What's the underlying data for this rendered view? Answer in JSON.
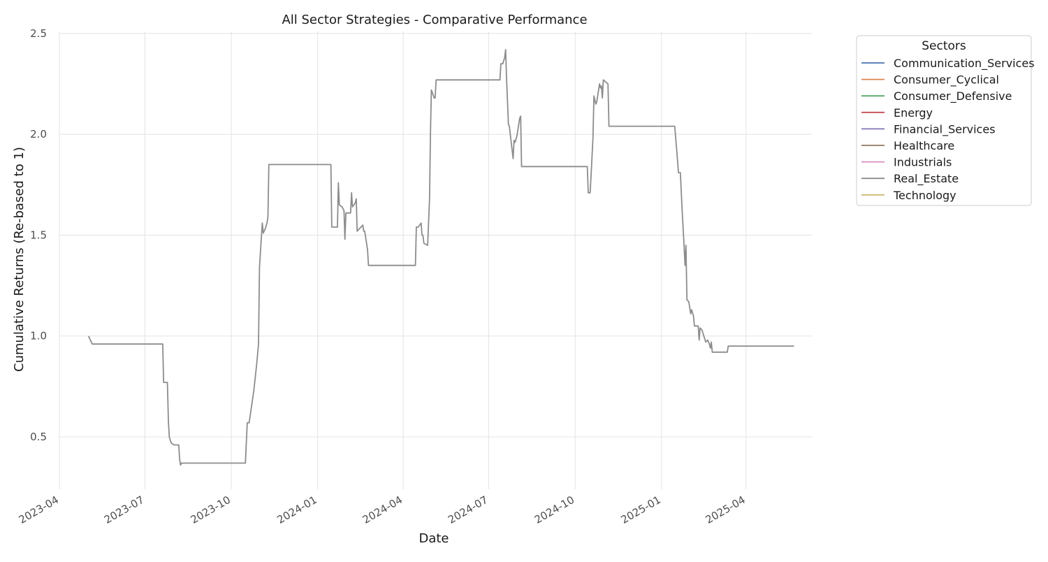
{
  "chart_data": {
    "type": "line",
    "title": "All Sector Strategies - Comparative Performance",
    "xlabel": "Date",
    "ylabel": "Cumulative Returns (Re-based to 1)",
    "xlim": [
      "2023-04-01",
      "2025-06-10"
    ],
    "ylim": [
      0.24,
      2.51
    ],
    "x_ticks": [
      "2023-04",
      "2023-07",
      "2023-10",
      "2024-01",
      "2024-04",
      "2024-07",
      "2024-10",
      "2025-01",
      "2025-04"
    ],
    "y_ticks": [
      0.5,
      1.0,
      1.5,
      2.0,
      2.5
    ],
    "y_tick_labels": [
      "0.5",
      "1.0",
      "1.5",
      "2.0",
      "2.5"
    ],
    "grid": true,
    "legend": {
      "title": "Sectors",
      "placement": "outside-upper-right",
      "entries": [
        {
          "name": "Communication_Services",
          "color": "#4c72b0"
        },
        {
          "name": "Consumer_Cyclical",
          "color": "#dd8452"
        },
        {
          "name": "Consumer_Defensive",
          "color": "#55a868"
        },
        {
          "name": "Energy",
          "color": "#c44e52"
        },
        {
          "name": "Financial_Services",
          "color": "#8172b3"
        },
        {
          "name": "Healthcare",
          "color": "#937860"
        },
        {
          "name": "Industrials",
          "color": "#da8bc3"
        },
        {
          "name": "Real_Estate",
          "color": "#8c8c8c"
        },
        {
          "name": "Technology",
          "color": "#ccb974"
        }
      ]
    },
    "series": [
      {
        "name": "Real_Estate",
        "color": "#8c8c8c",
        "points": [
          [
            "2023-05-02",
            1.0
          ],
          [
            "2023-05-06",
            0.96
          ],
          [
            "2023-07-20",
            0.96
          ],
          [
            "2023-07-21",
            0.77
          ],
          [
            "2023-07-25",
            0.77
          ],
          [
            "2023-07-26",
            0.58
          ],
          [
            "2023-07-27",
            0.5
          ],
          [
            "2023-07-29",
            0.47
          ],
          [
            "2023-08-01",
            0.46
          ],
          [
            "2023-08-06",
            0.46
          ],
          [
            "2023-08-07",
            0.39
          ],
          [
            "2023-08-08",
            0.36
          ],
          [
            "2023-08-09",
            0.37
          ],
          [
            "2023-10-16",
            0.37
          ],
          [
            "2023-10-18",
            0.57
          ],
          [
            "2023-10-20",
            0.57
          ],
          [
            "2023-10-25",
            0.73
          ],
          [
            "2023-10-28",
            0.86
          ],
          [
            "2023-10-30",
            0.96
          ],
          [
            "2023-10-31",
            1.34
          ],
          [
            "2023-11-03",
            1.56
          ],
          [
            "2023-11-04",
            1.51
          ],
          [
            "2023-11-06",
            1.53
          ],
          [
            "2023-11-08",
            1.56
          ],
          [
            "2023-11-09",
            1.59
          ],
          [
            "2023-11-10",
            1.85
          ],
          [
            "2024-01-15",
            1.85
          ],
          [
            "2024-01-16",
            1.54
          ],
          [
            "2024-01-22",
            1.54
          ],
          [
            "2024-01-23",
            1.76
          ],
          [
            "2024-01-24",
            1.65
          ],
          [
            "2024-01-27",
            1.64
          ],
          [
            "2024-01-29",
            1.62
          ],
          [
            "2024-01-30",
            1.48
          ],
          [
            "2024-01-31",
            1.61
          ],
          [
            "2024-02-05",
            1.61
          ],
          [
            "2024-02-06",
            1.71
          ],
          [
            "2024-02-07",
            1.64
          ],
          [
            "2024-02-10",
            1.66
          ],
          [
            "2024-02-11",
            1.68
          ],
          [
            "2024-02-12",
            1.52
          ],
          [
            "2024-02-18",
            1.55
          ],
          [
            "2024-02-19",
            1.52
          ],
          [
            "2024-02-20",
            1.52
          ],
          [
            "2024-02-23",
            1.43
          ],
          [
            "2024-02-24",
            1.35
          ],
          [
            "2024-04-14",
            1.35
          ],
          [
            "2024-04-15",
            1.54
          ],
          [
            "2024-04-17",
            1.54
          ],
          [
            "2024-04-20",
            1.56
          ],
          [
            "2024-04-21",
            1.5
          ],
          [
            "2024-04-22",
            1.5
          ],
          [
            "2024-04-23",
            1.46
          ],
          [
            "2024-04-27",
            1.45
          ],
          [
            "2024-04-28",
            1.56
          ],
          [
            "2024-04-29",
            1.68
          ],
          [
            "2024-04-30",
            2.0
          ],
          [
            "2024-05-01",
            2.22
          ],
          [
            "2024-05-04",
            2.18
          ],
          [
            "2024-05-05",
            2.18
          ],
          [
            "2024-05-06",
            2.27
          ],
          [
            "2024-07-13",
            2.27
          ],
          [
            "2024-07-14",
            2.35
          ],
          [
            "2024-07-16",
            2.35
          ],
          [
            "2024-07-18",
            2.38
          ],
          [
            "2024-07-19",
            2.42
          ],
          [
            "2024-07-20",
            2.28
          ],
          [
            "2024-07-22",
            2.05
          ],
          [
            "2024-07-23",
            2.04
          ],
          [
            "2024-07-27",
            1.88
          ],
          [
            "2024-07-28",
            1.97
          ],
          [
            "2024-07-29",
            1.96
          ],
          [
            "2024-07-31",
            1.99
          ],
          [
            "2024-08-03",
            2.08
          ],
          [
            "2024-08-04",
            2.09
          ],
          [
            "2024-08-05",
            1.84
          ],
          [
            "2024-10-14",
            1.84
          ],
          [
            "2024-10-15",
            1.71
          ],
          [
            "2024-10-17",
            1.71
          ],
          [
            "2024-10-20",
            1.98
          ],
          [
            "2024-10-21",
            2.19
          ],
          [
            "2024-10-23",
            2.15
          ],
          [
            "2024-10-24",
            2.16
          ],
          [
            "2024-10-27",
            2.25
          ],
          [
            "2024-10-28",
            2.23
          ],
          [
            "2024-10-29",
            2.24
          ],
          [
            "2024-10-30",
            2.18
          ],
          [
            "2024-10-31",
            2.27
          ],
          [
            "2024-11-05",
            2.25
          ],
          [
            "2024-11-06",
            2.04
          ],
          [
            "2025-01-15",
            2.04
          ],
          [
            "2025-01-17",
            1.93
          ],
          [
            "2025-01-19",
            1.81
          ],
          [
            "2025-01-21",
            1.81
          ],
          [
            "2025-01-23",
            1.62
          ],
          [
            "2025-01-25",
            1.45
          ],
          [
            "2025-01-26",
            1.35
          ],
          [
            "2025-01-27",
            1.45
          ],
          [
            "2025-01-28",
            1.18
          ],
          [
            "2025-01-30",
            1.17
          ],
          [
            "2025-02-01",
            1.11
          ],
          [
            "2025-02-02",
            1.13
          ],
          [
            "2025-02-04",
            1.1
          ],
          [
            "2025-02-05",
            1.05
          ],
          [
            "2025-02-09",
            1.05
          ],
          [
            "2025-02-10",
            0.98
          ],
          [
            "2025-02-11",
            1.04
          ],
          [
            "2025-02-13",
            1.03
          ],
          [
            "2025-02-17",
            0.97
          ],
          [
            "2025-02-19",
            0.98
          ],
          [
            "2025-02-21",
            0.96
          ],
          [
            "2025-02-22",
            0.94
          ],
          [
            "2025-02-23",
            0.97
          ],
          [
            "2025-02-24",
            0.92
          ],
          [
            "2025-03-12",
            0.92
          ],
          [
            "2025-03-13",
            0.95
          ],
          [
            "2025-05-22",
            0.95
          ]
        ]
      }
    ]
  }
}
